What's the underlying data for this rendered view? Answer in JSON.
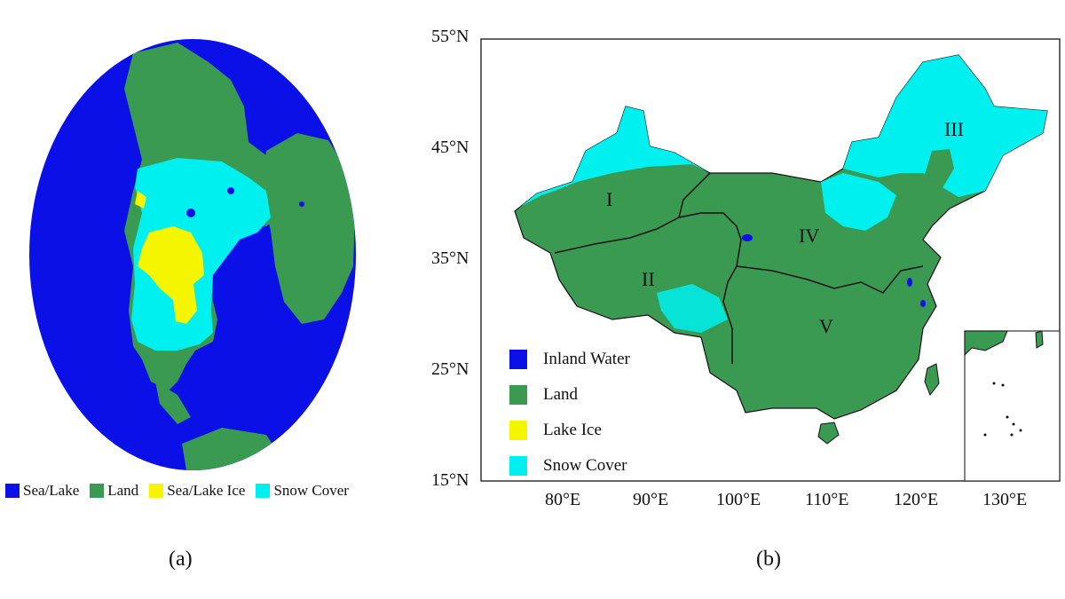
{
  "panel_a": {
    "caption": "(a)",
    "legend": [
      {
        "label": "Sea/Lake",
        "color": "#0a10e6"
      },
      {
        "label": "Land",
        "color": "#3a9a52"
      },
      {
        "label": "Sea/Lake Ice",
        "color": "#f5f500"
      },
      {
        "label": "Snow Cover",
        "color": "#00f0f0"
      }
    ]
  },
  "panel_b": {
    "caption": "(b)",
    "lat_ticks": [
      "55°N",
      "45°N",
      "35°N",
      "25°N",
      "15°N"
    ],
    "lon_ticks": [
      "80°E",
      "90°E",
      "100°E",
      "110°E",
      "120°E",
      "130°E"
    ],
    "regions": [
      "I",
      "II",
      "III",
      "IV",
      "V"
    ],
    "legend": [
      {
        "label": "Inland Water",
        "color": "#0a10e6"
      },
      {
        "label": "Land",
        "color": "#3a9a52"
      },
      {
        "label": "Lake Ice",
        "color": "#f5f500"
      },
      {
        "label": "Snow Cover",
        "color": "#00f0f0"
      }
    ]
  }
}
